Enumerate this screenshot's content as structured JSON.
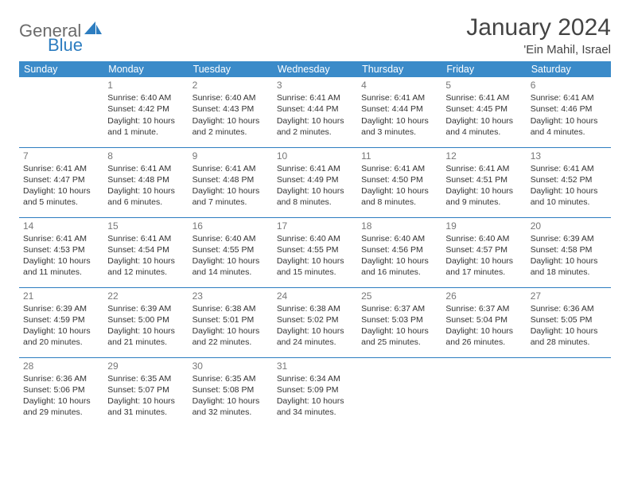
{
  "logo": {
    "text1": "General",
    "text2": "Blue"
  },
  "title": "January 2024",
  "location": "'Ein Mahil, Israel",
  "colors": {
    "header_bg": "#3b8bc9",
    "rule": "#2d7dc0",
    "logo_gray": "#6b6b6b",
    "logo_blue": "#2d7dc0"
  },
  "day_headers": [
    "Sunday",
    "Monday",
    "Tuesday",
    "Wednesday",
    "Thursday",
    "Friday",
    "Saturday"
  ],
  "weeks": [
    [
      null,
      {
        "n": "1",
        "sr": "Sunrise: 6:40 AM",
        "ss": "Sunset: 4:42 PM",
        "d1": "Daylight: 10 hours",
        "d2": "and 1 minute."
      },
      {
        "n": "2",
        "sr": "Sunrise: 6:40 AM",
        "ss": "Sunset: 4:43 PM",
        "d1": "Daylight: 10 hours",
        "d2": "and 2 minutes."
      },
      {
        "n": "3",
        "sr": "Sunrise: 6:41 AM",
        "ss": "Sunset: 4:44 PM",
        "d1": "Daylight: 10 hours",
        "d2": "and 2 minutes."
      },
      {
        "n": "4",
        "sr": "Sunrise: 6:41 AM",
        "ss": "Sunset: 4:44 PM",
        "d1": "Daylight: 10 hours",
        "d2": "and 3 minutes."
      },
      {
        "n": "5",
        "sr": "Sunrise: 6:41 AM",
        "ss": "Sunset: 4:45 PM",
        "d1": "Daylight: 10 hours",
        "d2": "and 4 minutes."
      },
      {
        "n": "6",
        "sr": "Sunrise: 6:41 AM",
        "ss": "Sunset: 4:46 PM",
        "d1": "Daylight: 10 hours",
        "d2": "and 4 minutes."
      }
    ],
    [
      {
        "n": "7",
        "sr": "Sunrise: 6:41 AM",
        "ss": "Sunset: 4:47 PM",
        "d1": "Daylight: 10 hours",
        "d2": "and 5 minutes."
      },
      {
        "n": "8",
        "sr": "Sunrise: 6:41 AM",
        "ss": "Sunset: 4:48 PM",
        "d1": "Daylight: 10 hours",
        "d2": "and 6 minutes."
      },
      {
        "n": "9",
        "sr": "Sunrise: 6:41 AM",
        "ss": "Sunset: 4:48 PM",
        "d1": "Daylight: 10 hours",
        "d2": "and 7 minutes."
      },
      {
        "n": "10",
        "sr": "Sunrise: 6:41 AM",
        "ss": "Sunset: 4:49 PM",
        "d1": "Daylight: 10 hours",
        "d2": "and 8 minutes."
      },
      {
        "n": "11",
        "sr": "Sunrise: 6:41 AM",
        "ss": "Sunset: 4:50 PM",
        "d1": "Daylight: 10 hours",
        "d2": "and 8 minutes."
      },
      {
        "n": "12",
        "sr": "Sunrise: 6:41 AM",
        "ss": "Sunset: 4:51 PM",
        "d1": "Daylight: 10 hours",
        "d2": "and 9 minutes."
      },
      {
        "n": "13",
        "sr": "Sunrise: 6:41 AM",
        "ss": "Sunset: 4:52 PM",
        "d1": "Daylight: 10 hours",
        "d2": "and 10 minutes."
      }
    ],
    [
      {
        "n": "14",
        "sr": "Sunrise: 6:41 AM",
        "ss": "Sunset: 4:53 PM",
        "d1": "Daylight: 10 hours",
        "d2": "and 11 minutes."
      },
      {
        "n": "15",
        "sr": "Sunrise: 6:41 AM",
        "ss": "Sunset: 4:54 PM",
        "d1": "Daylight: 10 hours",
        "d2": "and 12 minutes."
      },
      {
        "n": "16",
        "sr": "Sunrise: 6:40 AM",
        "ss": "Sunset: 4:55 PM",
        "d1": "Daylight: 10 hours",
        "d2": "and 14 minutes."
      },
      {
        "n": "17",
        "sr": "Sunrise: 6:40 AM",
        "ss": "Sunset: 4:55 PM",
        "d1": "Daylight: 10 hours",
        "d2": "and 15 minutes."
      },
      {
        "n": "18",
        "sr": "Sunrise: 6:40 AM",
        "ss": "Sunset: 4:56 PM",
        "d1": "Daylight: 10 hours",
        "d2": "and 16 minutes."
      },
      {
        "n": "19",
        "sr": "Sunrise: 6:40 AM",
        "ss": "Sunset: 4:57 PM",
        "d1": "Daylight: 10 hours",
        "d2": "and 17 minutes."
      },
      {
        "n": "20",
        "sr": "Sunrise: 6:39 AM",
        "ss": "Sunset: 4:58 PM",
        "d1": "Daylight: 10 hours",
        "d2": "and 18 minutes."
      }
    ],
    [
      {
        "n": "21",
        "sr": "Sunrise: 6:39 AM",
        "ss": "Sunset: 4:59 PM",
        "d1": "Daylight: 10 hours",
        "d2": "and 20 minutes."
      },
      {
        "n": "22",
        "sr": "Sunrise: 6:39 AM",
        "ss": "Sunset: 5:00 PM",
        "d1": "Daylight: 10 hours",
        "d2": "and 21 minutes."
      },
      {
        "n": "23",
        "sr": "Sunrise: 6:38 AM",
        "ss": "Sunset: 5:01 PM",
        "d1": "Daylight: 10 hours",
        "d2": "and 22 minutes."
      },
      {
        "n": "24",
        "sr": "Sunrise: 6:38 AM",
        "ss": "Sunset: 5:02 PM",
        "d1": "Daylight: 10 hours",
        "d2": "and 24 minutes."
      },
      {
        "n": "25",
        "sr": "Sunrise: 6:37 AM",
        "ss": "Sunset: 5:03 PM",
        "d1": "Daylight: 10 hours",
        "d2": "and 25 minutes."
      },
      {
        "n": "26",
        "sr": "Sunrise: 6:37 AM",
        "ss": "Sunset: 5:04 PM",
        "d1": "Daylight: 10 hours",
        "d2": "and 26 minutes."
      },
      {
        "n": "27",
        "sr": "Sunrise: 6:36 AM",
        "ss": "Sunset: 5:05 PM",
        "d1": "Daylight: 10 hours",
        "d2": "and 28 minutes."
      }
    ],
    [
      {
        "n": "28",
        "sr": "Sunrise: 6:36 AM",
        "ss": "Sunset: 5:06 PM",
        "d1": "Daylight: 10 hours",
        "d2": "and 29 minutes."
      },
      {
        "n": "29",
        "sr": "Sunrise: 6:35 AM",
        "ss": "Sunset: 5:07 PM",
        "d1": "Daylight: 10 hours",
        "d2": "and 31 minutes."
      },
      {
        "n": "30",
        "sr": "Sunrise: 6:35 AM",
        "ss": "Sunset: 5:08 PM",
        "d1": "Daylight: 10 hours",
        "d2": "and 32 minutes."
      },
      {
        "n": "31",
        "sr": "Sunrise: 6:34 AM",
        "ss": "Sunset: 5:09 PM",
        "d1": "Daylight: 10 hours",
        "d2": "and 34 minutes."
      },
      null,
      null,
      null
    ]
  ]
}
